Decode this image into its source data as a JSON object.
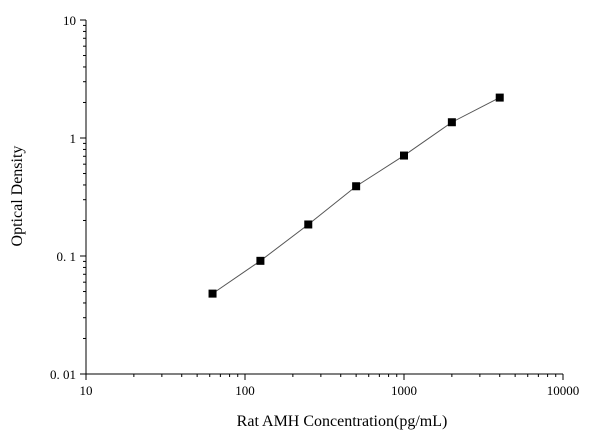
{
  "chart_data": {
    "type": "scatter",
    "title": "",
    "xlabel": "Rat AMH Concentration(pg/mL)",
    "ylabel": "Optical Density",
    "x_scale": "log",
    "y_scale": "log",
    "xlim": [
      10,
      10000
    ],
    "ylim": [
      0.01,
      10
    ],
    "x_ticks": [
      10,
      100,
      1000,
      10000
    ],
    "x_tick_labels": [
      "10",
      "100",
      "1000",
      "10000"
    ],
    "y_ticks": [
      0.01,
      0.1,
      1,
      10
    ],
    "y_tick_labels": [
      "0. 01",
      "0. 1",
      "1",
      "10"
    ],
    "grid": false,
    "legend": "none",
    "series": [
      {
        "x": [
          62.5,
          125,
          250,
          500,
          1000,
          2000,
          4000
        ],
        "y": [
          0.048,
          0.091,
          0.185,
          0.39,
          0.71,
          1.36,
          2.2
        ],
        "marker": "square",
        "marker_color": "#000000",
        "line": "curve-fit",
        "line_color": "#555555"
      }
    ]
  }
}
